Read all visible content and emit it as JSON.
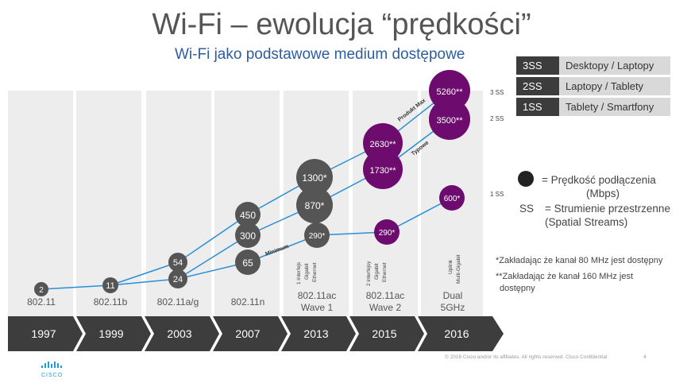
{
  "title": "Wi-Fi – ewolucja “prędkości”",
  "subtitle": "Wi-Fi jako podstawowe medium dostępowe",
  "ss_table": [
    {
      "key": "3SS",
      "value": "Desktopy / Laptopy"
    },
    {
      "key": "2SS",
      "value": "Laptopy / Tablety"
    },
    {
      "key": "1SS",
      "value": "Tablety / Smartfony"
    }
  ],
  "legend": {
    "circle_text_1": "= Prędkość podłączenia",
    "circle_text_2": "(Mbps)",
    "ss_key": "SS",
    "ss_text_1": "= Strumienie przestrzenne",
    "ss_text_2": "(Spatial Streams)"
  },
  "notes": {
    "note1": "*Zakładając że kanał 80 MHz jest dostępny",
    "note2": "**Zakładając że kanał 160 MHz jest",
    "note3": "dostępny"
  },
  "standards": [
    {
      "label": "802.11",
      "label2": ""
    },
    {
      "label": "802.11b",
      "label2": ""
    },
    {
      "label": "802.11a/g",
      "label2": ""
    },
    {
      "label": "802.11n",
      "label2": ""
    },
    {
      "label": "802.11ac",
      "label2": "Wave 1"
    },
    {
      "label": "802.11ac",
      "label2": "Wave 2"
    },
    {
      "label": "Dual",
      "label2": "5GHz"
    }
  ],
  "years": [
    "1997",
    "1999",
    "2003",
    "2007",
    "2013",
    "2015",
    "2016"
  ],
  "vertical_labels": {
    "w1": [
      "1 interfejs",
      "Gigabit",
      "Ethernet"
    ],
    "w2": [
      "2 interfejsy",
      "Gigabit",
      "Ethernet"
    ],
    "dual": [
      "Uplink",
      "Multi-Gigabit"
    ]
  },
  "ss_axis": {
    "s3": "3 SS",
    "s2": "2 SS",
    "s1": "1 SS"
  },
  "line_labels": {
    "max": "Produkt Max",
    "typical": "Typowe",
    "minimum": "Minimum"
  },
  "circles": {
    "c80211": "2",
    "c80211b": "11",
    "ag54": "54",
    "ag24": "24",
    "n450": "450",
    "n300": "300",
    "n65": "65",
    "w1_1300": "1300*",
    "w1_870": "870*",
    "w1_290": "290*",
    "w2_2630": "2630**",
    "w2_1730": "1730**",
    "w2_290": "290*",
    "d_5260": "5260**",
    "d_3500": "3500**",
    "d_600": "600*"
  },
  "colors": {
    "gray_circle": "#555555",
    "purple_circle": "#6e0b6e",
    "line": "#2a8fd4",
    "timeline": "#3d3d3d"
  },
  "footer": "© 2016  Cisco and/or its affiliates. All rights reserved.   Cisco Confidential",
  "page_number": "4",
  "logo_text": "CISCO"
}
